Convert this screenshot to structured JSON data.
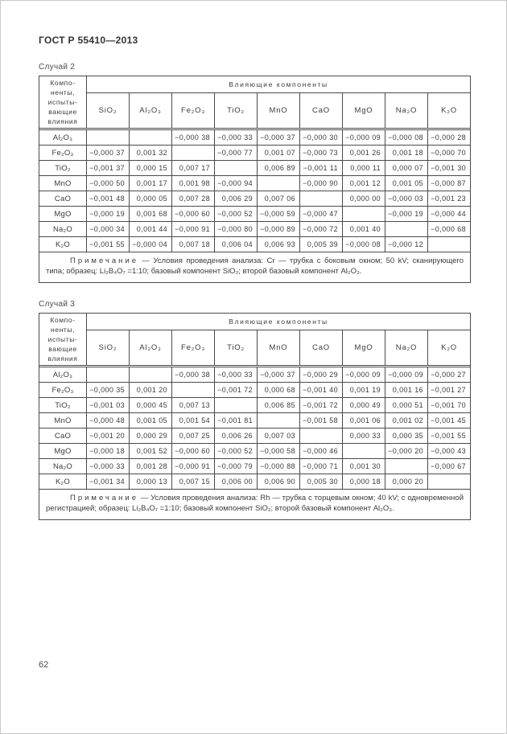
{
  "page": {
    "doc_number": "ГОСТ Р 55410—2013",
    "page_number": "62"
  },
  "tables": [
    {
      "caption": "Случай 2",
      "row_header_title": "Компо-\nненты,\nиспыты-\nвающие\nвлияния",
      "span_header": "Влияющие компоненты",
      "columns": [
        "SiO₂",
        "Al₂O₃",
        "Fe₂O₃",
        "TiO₂",
        "MnO",
        "CaO",
        "MgO",
        "Na₂O",
        "K₂O"
      ],
      "rows": [
        {
          "label": "Al₂O₃",
          "values": [
            "",
            "",
            "−0,000 38",
            "−0,000 33",
            "−0,000 37",
            "−0,000 30",
            "−0,000 09",
            "−0,000 08",
            "−0,000 28"
          ]
        },
        {
          "label": "Fe₂O₃",
          "values": [
            "−0,000 37",
            "0,001 32",
            "",
            "−0,000 77",
            "0,001 07",
            "−0,000 73",
            "0,001 26",
            "0,001 18",
            "−0,000 70"
          ]
        },
        {
          "label": "TiO₂",
          "values": [
            "−0,001 37",
            "0,000 15",
            "0,007 17",
            "",
            "0,006 89",
            "−0,001 11",
            "0,000 11",
            "0,000 07",
            "−0,001 30"
          ]
        },
        {
          "label": "MnO",
          "values": [
            "−0,000 50",
            "0,001 17",
            "0,001 98",
            "−0,000 94",
            "",
            "−0,000 90",
            "0,001 12",
            "0,001 05",
            "−0,000 87"
          ]
        },
        {
          "label": "CaO",
          "values": [
            "−0,001 48",
            "0,000 05",
            "0,007 28",
            "0,006 29",
            "0,007 06",
            "",
            "0,000 00",
            "−0,000 03",
            "−0,001 23"
          ]
        },
        {
          "label": "MgO",
          "values": [
            "−0,000 19",
            "0,001 68",
            "−0,000 60",
            "−0,000 52",
            "−0,000 59",
            "−0,000 47",
            "",
            "−0,000 19",
            "−0,000 44"
          ]
        },
        {
          "label": "Na₂O",
          "values": [
            "−0,000 34",
            "0,001 44",
            "−0,000 91",
            "−0,000 80",
            "−0,000 89",
            "−0,000 72",
            "0,001 40",
            "",
            "−0,000 68"
          ]
        },
        {
          "label": "K₂O",
          "values": [
            "−0,001 55",
            "−0,000 04",
            "0,007 18",
            "0,006 04",
            "0,006 93",
            "0,005 39",
            "−0,000 08",
            "−0,000 12",
            ""
          ]
        }
      ],
      "note_label": "Примечание",
      "note_text": " — Условия проведения анализа: Cr — трубка с боковым окном; 50 kV; сканирующего типа; образец: Li₂B₄O₇ =1:10; базовый компонент SiO₂; второй базовый компонент Al₂O₃."
    },
    {
      "caption": "Случай 3",
      "row_header_title": "Компо-\nненты,\nиспыты-\nвающие\nвлияния",
      "span_header": "Влияющие компоненты",
      "columns": [
        "SiO₂",
        "Al₂O₃",
        "Fe₂O₃",
        "TiO₂",
        "MnO",
        "CaO",
        "MgO",
        "Na₂O",
        "K₂O"
      ],
      "rows": [
        {
          "label": "Al₂O₃",
          "values": [
            "",
            "",
            "−0,000 38",
            "−0,000 33",
            "−0,000 37",
            "−0,000 29",
            "−0,000 09",
            "−0,000 09",
            "−0,000 27"
          ]
        },
        {
          "label": "Fe₂O₃",
          "values": [
            "−0,000 35",
            "0,001 20",
            "",
            "−0,001 72",
            "0,000 68",
            "−0,001 40",
            "0,001 19",
            "0,001 16",
            "−0,001 27"
          ]
        },
        {
          "label": "TiO₂",
          "values": [
            "−0,001 03",
            "0,000 45",
            "0,007 13",
            "",
            "0,006 85",
            "−0,001 72",
            "0,000 49",
            "0,000 51",
            "−0,001 70"
          ]
        },
        {
          "label": "MnO",
          "values": [
            "−0,000 48",
            "0,001 05",
            "0,001 54",
            "−0,001 81",
            "",
            "−0,001 58",
            "0,001 06",
            "0,001 02",
            "−0,001 45"
          ]
        },
        {
          "label": "CaO",
          "values": [
            "−0,001 20",
            "0,000 29",
            "0,007 25",
            "0,006 26",
            "0,007 03",
            "",
            "0,000 33",
            "0,000 35",
            "−0,001 55"
          ]
        },
        {
          "label": "MgO",
          "values": [
            "−0,000 18",
            "0,001 52",
            "−0,000 60",
            "−0,000 52",
            "−0,000 58",
            "−0,000 46",
            "",
            "−0,000 20",
            "−0,000 43"
          ]
        },
        {
          "label": "Na₂O",
          "values": [
            "−0,000 33",
            "0,001 28",
            "−0,000 91",
            "−0,000 79",
            "−0,000 88",
            "−0,000 71",
            "0,001 30",
            "",
            "−0,000 67"
          ]
        },
        {
          "label": "K₂O",
          "values": [
            "−0,001 34",
            "0,000 13",
            "0,007 15",
            "0,006 00",
            "0,006 90",
            "0,005 30",
            "0,000 18",
            "0,000 20",
            ""
          ]
        }
      ],
      "note_label": "Примечание",
      "note_text": " — Условия проведения анализа: Rh — трубка с торцевым окном; 40 kV; с одновременной регистрацией; образец: Li₂B₄O₇ =1:10; базовый компонент SiO₂; второй базовый компонент Al₂O₃."
    }
  ]
}
